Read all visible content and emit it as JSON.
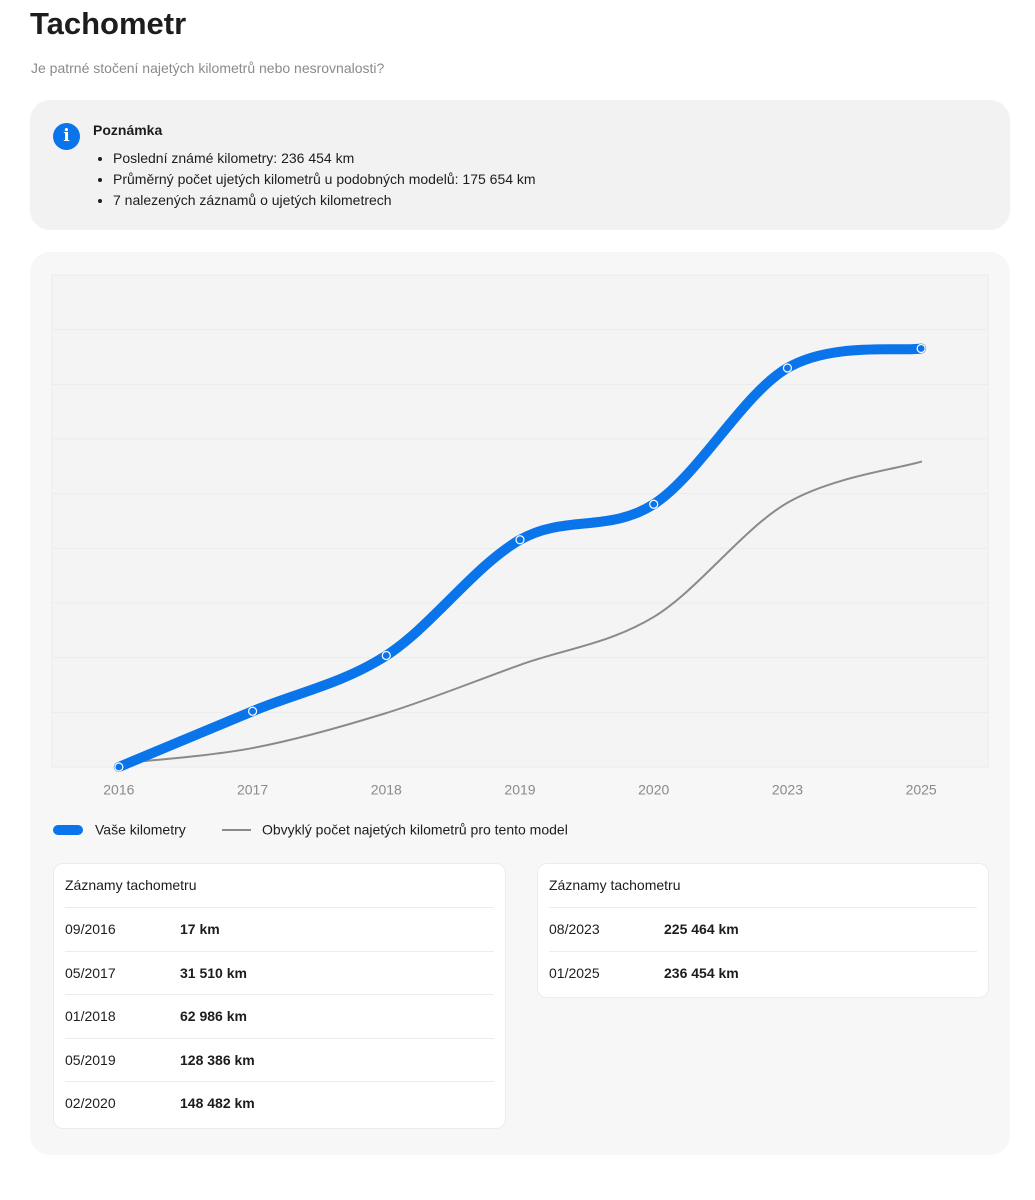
{
  "header": {
    "title": "Tachometr",
    "subtitle": "Je patrné stočení najetých kilometrů nebo nesrovnalosti?"
  },
  "note": {
    "title": "Poznámka",
    "items": [
      "Poslední známé kilometry: 236 454 km",
      "Průměrný počet ujetých kilometrů u podobných modelů: 175 654 km",
      "7 nalezených záznamů o ujetých kilometrech"
    ]
  },
  "chart_data": {
    "type": "line",
    "categories": [
      "2016",
      "2017",
      "2018",
      "2019",
      "2020",
      "2023",
      "2025"
    ],
    "series": [
      {
        "name": "Vaše kilometry",
        "color": "#0a74ea",
        "values": [
          17,
          31510,
          62986,
          128386,
          148482,
          225464,
          236454
        ]
      },
      {
        "name": "Obvyklý počet najetých kilometrů pro tento model",
        "color": "#8a8a8a",
        "values": [
          2000,
          10700,
          30500,
          57700,
          84800,
          149300,
          172500
        ]
      }
    ],
    "ylim": [
      0,
      278000
    ],
    "grid": true
  },
  "records": [
    {
      "title": "Záznamy tachometru",
      "rows": [
        [
          "09/2016",
          "17 km"
        ],
        [
          "05/2017",
          "31 510 km"
        ],
        [
          "01/2018",
          "62 986 km"
        ],
        [
          "05/2019",
          "128 386 km"
        ],
        [
          "02/2020",
          "148 482 km"
        ]
      ]
    },
    {
      "title": "Záznamy tachometru",
      "rows": [
        [
          "08/2023",
          "225 464 km"
        ],
        [
          "01/2025",
          "236 454 km"
        ]
      ]
    }
  ]
}
